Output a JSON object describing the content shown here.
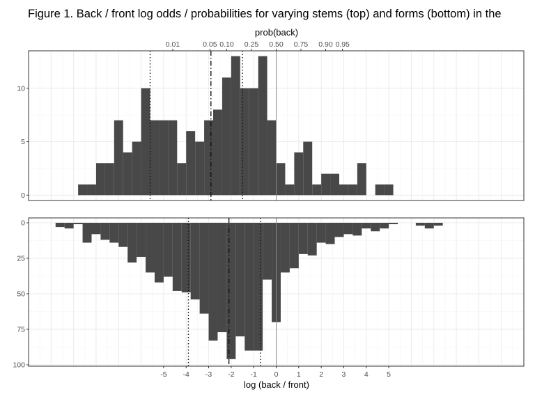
{
  "figure": {
    "title": "Figure 1. Back / front log odds / probabilities for varying stems (top) and forms (bottom) in the"
  },
  "chart_data": [
    {
      "panel": "top",
      "type": "bar",
      "description": "histogram of stems",
      "xlabel": "",
      "secondary_xlabel": "prob(back)",
      "secondary_ticks": [
        "0.01",
        "0.05",
        "0.10",
        "0.25",
        "0.50",
        "0.75",
        "0.90",
        "0.95"
      ],
      "xlim": [
        -11,
        11
      ],
      "ylim": [
        -0.5,
        13.5
      ],
      "yticks": [
        0,
        5,
        10
      ],
      "grid": true,
      "bin_width": 0.4,
      "bins_x": [
        -8.8,
        -8.4,
        -8.0,
        -7.6,
        -7.2,
        -6.8,
        -6.4,
        -6.0,
        -5.6,
        -5.2,
        -4.8,
        -4.4,
        -4.0,
        -3.6,
        -3.2,
        -2.8,
        -2.4,
        -2.0,
        -1.6,
        -1.2,
        -0.8,
        -0.4,
        0.0,
        0.4,
        0.8,
        1.2,
        1.6,
        2.0,
        2.4,
        2.8,
        3.2,
        3.6,
        4.0,
        4.4,
        4.8
      ],
      "values": [
        1,
        1,
        3,
        3,
        7,
        4,
        5,
        10,
        7,
        7,
        7,
        3,
        6,
        5,
        7,
        8,
        11,
        13,
        10,
        10,
        13,
        7,
        3,
        1,
        4,
        5,
        1,
        2,
        2,
        1,
        1,
        3,
        0,
        1,
        1
      ],
      "vlines": [
        {
          "x": -5.6,
          "style": "dotted"
        },
        {
          "x": -2.9,
          "style": "dashdot"
        },
        {
          "x": -1.5,
          "style": "dotted"
        },
        {
          "x": 0,
          "style": "solid"
        }
      ]
    },
    {
      "panel": "bottom",
      "type": "bar",
      "description": "histogram of forms, drawn downward",
      "xlabel": "log (back / front)",
      "xticks": [
        -5,
        -4,
        -3,
        -2,
        -1,
        0,
        1,
        2,
        3,
        4,
        5
      ],
      "xlim": [
        -11,
        11
      ],
      "ylim": [
        0,
        100
      ],
      "yticks": [
        0,
        25,
        50,
        75,
        100
      ],
      "y_reversed": true,
      "grid": true,
      "bin_width": 0.4,
      "bins_x": [
        -9.8,
        -9.4,
        -9.0,
        -8.6,
        -8.2,
        -7.8,
        -7.4,
        -7.0,
        -6.6,
        -6.2,
        -5.8,
        -5.4,
        -5.0,
        -4.6,
        -4.2,
        -3.8,
        -3.4,
        -3.0,
        -2.6,
        -2.2,
        -1.8,
        -1.4,
        -1.0,
        -0.6,
        -0.2,
        0.2,
        0.6,
        1.0,
        1.4,
        1.8,
        2.2,
        2.6,
        3.0,
        3.4,
        3.8,
        4.2,
        4.6,
        5.0,
        6.2,
        6.6,
        7.0
      ],
      "values": [
        3,
        4,
        1,
        14,
        8,
        12,
        14,
        17,
        28,
        24,
        35,
        42,
        38,
        48,
        49,
        54,
        64,
        83,
        77,
        96,
        80,
        90,
        90,
        40,
        70,
        35,
        32,
        22,
        23,
        14,
        15,
        10,
        8,
        9,
        4,
        6,
        4,
        1,
        2,
        4,
        2
      ],
      "vlines": [
        {
          "x": -3.9,
          "style": "dotted"
        },
        {
          "x": -2.1,
          "style": "dashdot"
        },
        {
          "x": -0.7,
          "style": "dotted"
        },
        {
          "x": 0,
          "style": "solid"
        }
      ]
    }
  ]
}
